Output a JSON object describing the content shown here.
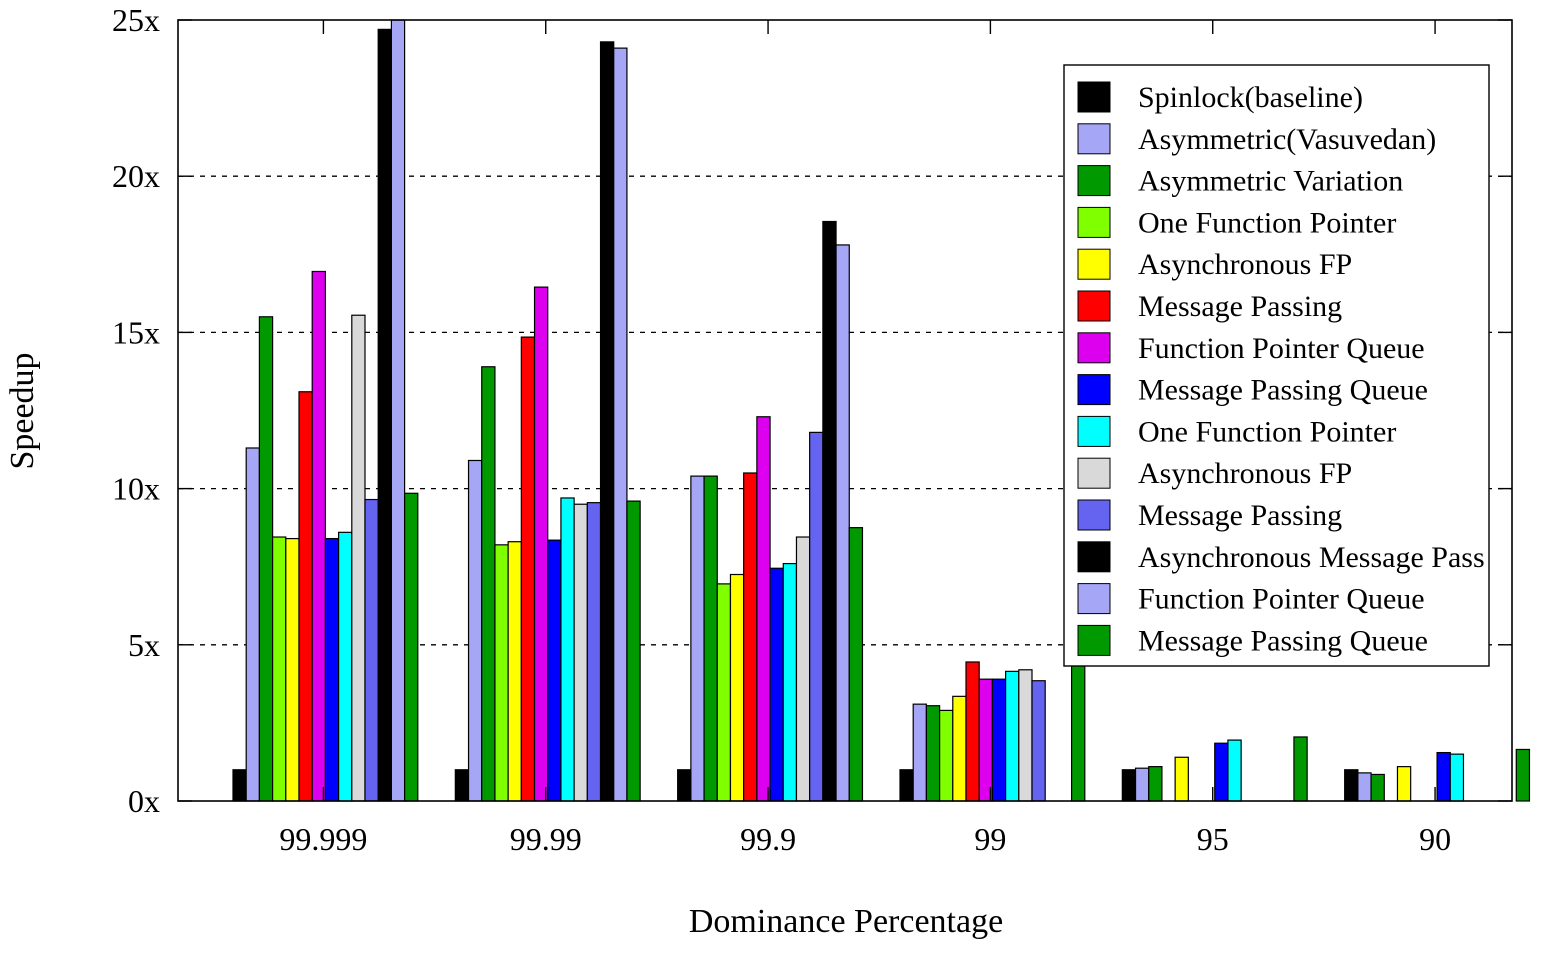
{
  "chart_data": {
    "type": "bar",
    "title": "",
    "xlabel": "Dominance Percentage",
    "ylabel": "Speedup",
    "ylim": [
      0,
      25
    ],
    "yticks": [
      0,
      5,
      10,
      15,
      20,
      25
    ],
    "ytick_labels": [
      "0x",
      "5x",
      "10x",
      "15x",
      "20x",
      "25x"
    ],
    "grid": "horizontal dashed",
    "legend_position": "top-right",
    "categories": [
      "99.999",
      "99.99",
      "99.9",
      "99",
      "95",
      "90"
    ],
    "series": [
      {
        "name": "Spinlock(baseline)",
        "color": "#000000",
        "values": [
          1.0,
          1.0,
          1.0,
          1.0,
          1.0,
          1.0
        ]
      },
      {
        "name": "Asymmetric(Vasuvedan)",
        "color": "#a6a6f7",
        "values": [
          11.3,
          10.9,
          10.4,
          3.1,
          1.05,
          0.9
        ]
      },
      {
        "name": "Asymmetric Variation",
        "color": "#009900",
        "values": [
          15.5,
          13.9,
          10.4,
          3.05,
          1.1,
          0.85
        ]
      },
      {
        "name": "One Function Pointer",
        "color": "#7fff00",
        "values": [
          8.45,
          8.2,
          6.95,
          2.9,
          null,
          null
        ]
      },
      {
        "name": "Asynchronous FP",
        "color": "#ffff00",
        "values": [
          8.4,
          8.3,
          7.25,
          3.35,
          1.4,
          1.1
        ]
      },
      {
        "name": "Message Passing",
        "color": "#ff0000",
        "values": [
          13.1,
          14.85,
          10.5,
          4.45,
          null,
          null
        ]
      },
      {
        "name": "Function Pointer Queue",
        "color": "#dd00ee",
        "values": [
          16.95,
          16.45,
          12.3,
          3.9,
          null,
          null
        ]
      },
      {
        "name": "Message Passing Queue",
        "color": "#0000ff",
        "values": [
          8.4,
          8.35,
          7.45,
          3.9,
          1.85,
          1.55
        ]
      },
      {
        "name": "One Function Pointer",
        "color": "#00ffff",
        "values": [
          8.6,
          9.7,
          7.6,
          4.15,
          1.95,
          1.5
        ]
      },
      {
        "name": "Asynchronous FP",
        "color": "#d9d9d9",
        "values": [
          15.55,
          9.5,
          8.45,
          4.2,
          null,
          null
        ]
      },
      {
        "name": "Message Passing",
        "color": "#6464f0",
        "values": [
          9.65,
          9.55,
          11.8,
          3.85,
          null,
          null
        ]
      },
      {
        "name": "Asynchronous Message Pass",
        "color": "#000000",
        "values": [
          24.7,
          24.3,
          18.55,
          null,
          null,
          null
        ]
      },
      {
        "name": "Function Pointer Queue",
        "color": "#a6a6f7",
        "values": [
          25.0,
          24.1,
          17.8,
          null,
          null,
          null
        ]
      },
      {
        "name": "Message Passing Queue",
        "color": "#009900",
        "values": [
          9.85,
          9.6,
          8.75,
          4.35,
          2.05,
          1.65
        ]
      }
    ]
  }
}
